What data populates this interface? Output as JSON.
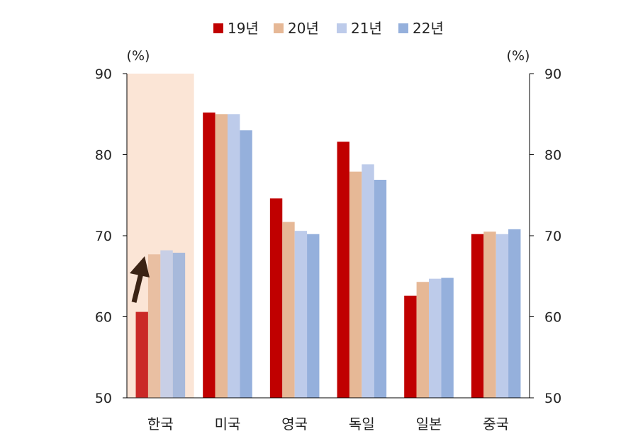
{
  "chart_data": {
    "type": "bar",
    "categories": [
      "한국",
      "미국",
      "영국",
      "독일",
      "일본",
      "중국"
    ],
    "series": [
      {
        "name": "19년",
        "color": "#c00000",
        "values": [
          60.6,
          85.2,
          74.6,
          81.6,
          62.6,
          70.2
        ]
      },
      {
        "name": "20년",
        "color": "#e6b896",
        "values": [
          67.7,
          85.0,
          71.7,
          77.9,
          64.3,
          70.5
        ]
      },
      {
        "name": "21년",
        "color": "#bdcbea",
        "values": [
          68.2,
          85.0,
          70.6,
          78.8,
          64.7,
          70.2
        ]
      },
      {
        "name": "22년",
        "color": "#95b0dc",
        "values": [
          67.9,
          83.0,
          70.2,
          76.9,
          64.8,
          70.8
        ]
      }
    ],
    "ylim": [
      50,
      90
    ],
    "yticks": [
      50,
      60,
      70,
      80,
      90
    ],
    "ylabel_left": "(%)",
    "ylabel_right": "(%)",
    "legend_position": "top",
    "highlight_category": "한국",
    "highlight_color": "#fbe5d6",
    "arrow_color": "#3b2314"
  }
}
